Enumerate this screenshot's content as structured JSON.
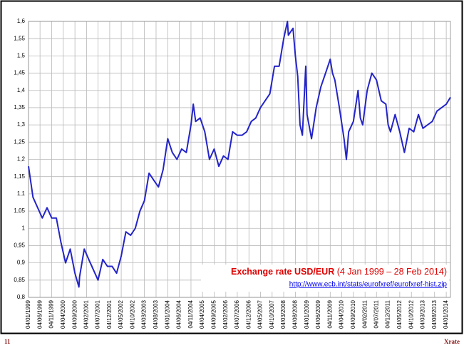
{
  "chart_data": {
    "type": "line",
    "annotation_title": "Exchange rate USD/EUR",
    "annotation_period": "(4 Jan 1999 – 28 Feb 2014)",
    "annotation_url": "http://www.ecb.int/stats/eurofxref/eurofxref-hist.zip",
    "xlim": [
      "04/01/1999",
      "28/02/2014"
    ],
    "xticks": [
      "04/01/1999",
      "04/06/1999",
      "04/11/1999",
      "04/04/2000",
      "04/09/2000",
      "04/02/2001",
      "04/07/2001",
      "04/12/2001",
      "04/05/2002",
      "04/10/2002",
      "04/03/2003",
      "04/08/2003",
      "04/01/2004",
      "04/06/2004",
      "04/11/2004",
      "04/04/2005",
      "04/09/2005",
      "04/02/2006",
      "04/07/2006",
      "04/12/2006",
      "04/05/2007",
      "04/10/2007",
      "04/03/2008",
      "04/08/2008",
      "04/01/2009",
      "04/06/2009",
      "04/11/2009",
      "04/04/2010",
      "04/09/2010",
      "04/02/2011",
      "04/07/2011",
      "04/12/2011",
      "04/05/2012",
      "04/10/2012",
      "04/03/2013",
      "04/08/2013",
      "04/01/2014"
    ],
    "ylim": [
      0.8,
      1.6
    ],
    "yticks": [
      {
        "value": 0.8,
        "label": "0,8"
      },
      {
        "value": 0.85,
        "label": "0,85"
      },
      {
        "value": 0.9,
        "label": "0,9"
      },
      {
        "value": 0.95,
        "label": "0,95"
      },
      {
        "value": 1,
        "label": "1"
      },
      {
        "value": 1.05,
        "label": "1,05"
      },
      {
        "value": 1.1,
        "label": "1,1"
      },
      {
        "value": 1.15,
        "label": "1,15"
      },
      {
        "value": 1.2,
        "label": "1,2"
      },
      {
        "value": 1.25,
        "label": "1,25"
      },
      {
        "value": 1.3,
        "label": "1,3"
      },
      {
        "value": 1.35,
        "label": "1,35"
      },
      {
        "value": 1.4,
        "label": "1,4"
      },
      {
        "value": 1.45,
        "label": "1,45"
      },
      {
        "value": 1.5,
        "label": "1,5"
      },
      {
        "value": 1.55,
        "label": "1,55"
      },
      {
        "value": 1.6,
        "label": "1,6"
      }
    ],
    "grid": true,
    "color": "#2424c8",
    "x": [
      "04/01/1999",
      "04/03/1999",
      "04/05/1999",
      "04/07/1999",
      "04/09/1999",
      "04/11/1999",
      "04/01/2000",
      "04/03/2000",
      "04/05/2000",
      "04/07/2000",
      "04/09/2000",
      "26/10/2000",
      "04/11/2000",
      "04/01/2001",
      "04/03/2001",
      "04/05/2001",
      "04/07/2001",
      "04/09/2001",
      "04/11/2001",
      "04/01/2002",
      "04/03/2002",
      "04/05/2002",
      "04/07/2002",
      "04/09/2002",
      "04/11/2002",
      "04/01/2003",
      "04/03/2003",
      "04/05/2003",
      "04/07/2003",
      "04/09/2003",
      "04/11/2003",
      "04/01/2004",
      "04/03/2004",
      "04/05/2004",
      "04/07/2004",
      "04/09/2004",
      "04/11/2004",
      "04/12/2004",
      "04/01/2005",
      "04/03/2005",
      "04/05/2005",
      "04/07/2005",
      "04/09/2005",
      "04/11/2005",
      "04/01/2006",
      "04/03/2006",
      "04/05/2006",
      "04/07/2006",
      "04/09/2006",
      "04/11/2006",
      "04/01/2007",
      "04/03/2007",
      "04/05/2007",
      "04/07/2007",
      "04/09/2007",
      "04/11/2007",
      "04/01/2008",
      "04/03/2008",
      "22/04/2008",
      "04/05/2008",
      "04/07/2008",
      "04/08/2008",
      "04/09/2008",
      "04/10/2008",
      "04/11/2008",
      "18/12/2008",
      "04/01/2009",
      "04/03/2009",
      "04/05/2009",
      "04/07/2009",
      "04/09/2009",
      "04/11/2009",
      "04/12/2009",
      "04/01/2010",
      "04/03/2010",
      "04/05/2010",
      "04/06/2010",
      "04/07/2010",
      "04/09/2010",
      "04/11/2010",
      "04/12/2010",
      "04/01/2011",
      "04/03/2011",
      "04/05/2011",
      "04/07/2011",
      "04/09/2011",
      "04/11/2011",
      "04/12/2011",
      "04/01/2012",
      "04/03/2012",
      "04/05/2012",
      "04/07/2012",
      "04/09/2012",
      "04/11/2012",
      "04/01/2013",
      "04/03/2013",
      "04/05/2013",
      "04/07/2013",
      "04/09/2013",
      "04/11/2013",
      "04/01/2014",
      "28/02/2014"
    ],
    "values": [
      1.18,
      1.09,
      1.06,
      1.03,
      1.06,
      1.03,
      1.03,
      0.96,
      0.9,
      0.94,
      0.87,
      0.83,
      0.86,
      0.94,
      0.91,
      0.88,
      0.85,
      0.91,
      0.89,
      0.89,
      0.87,
      0.92,
      0.99,
      0.98,
      1.0,
      1.05,
      1.08,
      1.16,
      1.14,
      1.12,
      1.17,
      1.26,
      1.22,
      1.2,
      1.23,
      1.22,
      1.3,
      1.36,
      1.31,
      1.32,
      1.28,
      1.2,
      1.23,
      1.18,
      1.21,
      1.2,
      1.28,
      1.27,
      1.27,
      1.28,
      1.31,
      1.32,
      1.35,
      1.37,
      1.39,
      1.47,
      1.47,
      1.55,
      1.6,
      1.56,
      1.58,
      1.5,
      1.44,
      1.3,
      1.27,
      1.47,
      1.33,
      1.26,
      1.35,
      1.41,
      1.45,
      1.49,
      1.45,
      1.43,
      1.35,
      1.26,
      1.2,
      1.28,
      1.31,
      1.4,
      1.32,
      1.3,
      1.4,
      1.45,
      1.43,
      1.37,
      1.36,
      1.3,
      1.28,
      1.33,
      1.28,
      1.22,
      1.29,
      1.28,
      1.33,
      1.29,
      1.3,
      1.31,
      1.34,
      1.35,
      1.36,
      1.38
    ]
  },
  "slide": {
    "page_number": "11",
    "label": "Xrate"
  }
}
